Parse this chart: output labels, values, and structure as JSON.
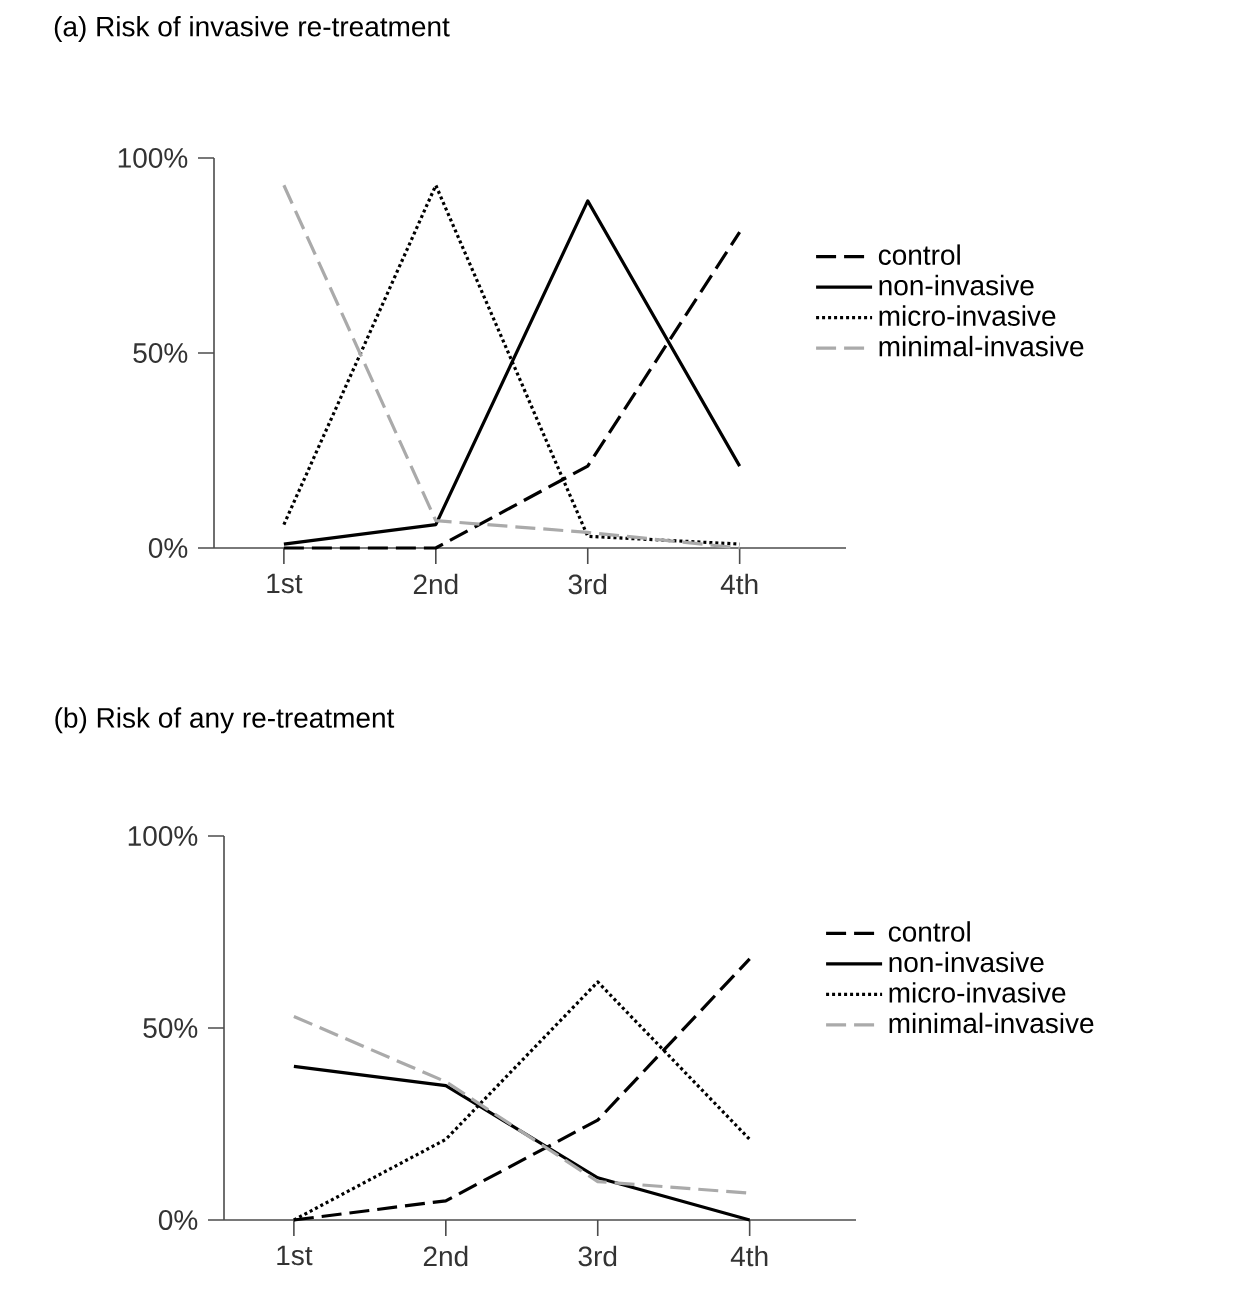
{
  "chart_data": [
    {
      "type": "line",
      "title": "(a) Risk of invasive re-treatment",
      "categories": [
        "1st",
        "2nd",
        "3rd",
        "4th"
      ],
      "ylim": [
        0,
        100
      ],
      "yticks": [
        {
          "value": 0,
          "label": "0%"
        },
        {
          "value": 50,
          "label": "50%"
        },
        {
          "value": 100,
          "label": "100%"
        }
      ],
      "legend": "right",
      "grid": false,
      "series": [
        {
          "name": "control",
          "color": "#000000",
          "line_style": "dashed",
          "values": [
            0,
            0,
            21,
            81
          ]
        },
        {
          "name": "non-invasive",
          "color": "#000000",
          "line_style": "solid",
          "values": [
            1,
            6,
            89,
            21
          ]
        },
        {
          "name": "micro-invasive",
          "color": "#000000",
          "line_style": "dotted",
          "values": [
            6,
            93,
            3,
            1
          ]
        },
        {
          "name": "minimal-invasive",
          "color": "#aaaaaa",
          "line_style": "dashed",
          "values": [
            93,
            7,
            4,
            0
          ]
        }
      ]
    },
    {
      "type": "line",
      "title": "(b) Risk of any re-treatment",
      "categories": [
        "1st",
        "2nd",
        "3rd",
        "4th"
      ],
      "ylim": [
        0,
        100
      ],
      "yticks": [
        {
          "value": 0,
          "label": "0%"
        },
        {
          "value": 50,
          "label": "50%"
        },
        {
          "value": 100,
          "label": "100%"
        }
      ],
      "legend": "right",
      "grid": false,
      "series": [
        {
          "name": "control",
          "color": "#000000",
          "line_style": "dashed",
          "values": [
            0,
            5,
            26,
            68
          ]
        },
        {
          "name": "non-invasive",
          "color": "#000000",
          "line_style": "solid",
          "values": [
            40,
            35,
            11,
            0
          ]
        },
        {
          "name": "micro-invasive",
          "color": "#000000",
          "line_style": "dotted",
          "values": [
            0,
            21,
            62,
            21
          ]
        },
        {
          "name": "minimal-invasive",
          "color": "#aaaaaa",
          "line_style": "dashed",
          "values": [
            53,
            36,
            10,
            7
          ]
        }
      ]
    }
  ]
}
